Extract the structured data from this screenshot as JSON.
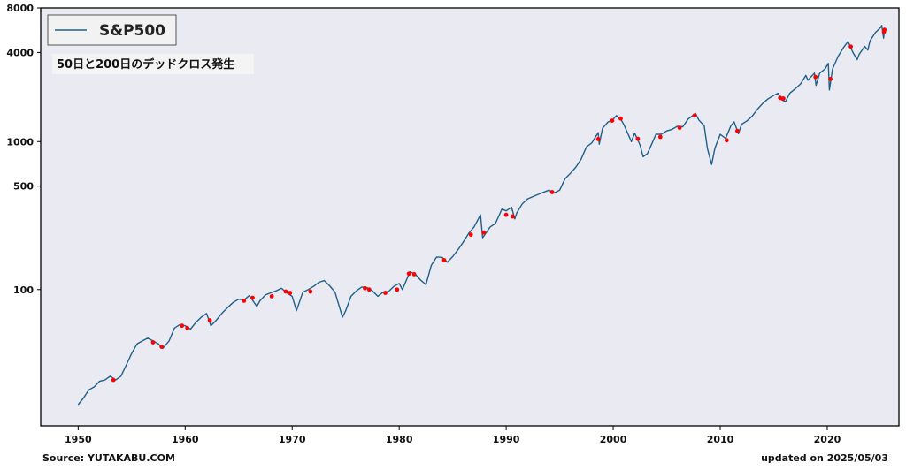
{
  "chart_data": {
    "type": "line",
    "yscale": "log",
    "xlim": [
      1946.5,
      2026.7
    ],
    "ylim": [
      12,
      8000
    ],
    "x_ticks": [
      1950,
      1960,
      1970,
      1980,
      1990,
      2000,
      2010,
      2020
    ],
    "y_ticks": [
      {
        "value": 100,
        "label": "100"
      },
      {
        "value": 500,
        "label": "500"
      },
      {
        "value": 1000,
        "label": "1000"
      },
      {
        "value": 4000,
        "label": "4000"
      },
      {
        "value": 8000,
        "label": "8000"
      }
    ],
    "background": "#eaeaf2",
    "series": [
      {
        "name": "S&P500",
        "color": "#1f5f8b",
        "points": [
          [
            1950.0,
            16.7
          ],
          [
            1950.5,
            18.5
          ],
          [
            1951.0,
            21.0
          ],
          [
            1951.5,
            22.0
          ],
          [
            1952.0,
            24.0
          ],
          [
            1952.5,
            24.5
          ],
          [
            1953.0,
            26.0
          ],
          [
            1953.5,
            24.5
          ],
          [
            1954.0,
            26.0
          ],
          [
            1954.5,
            31.0
          ],
          [
            1955.0,
            37.0
          ],
          [
            1955.5,
            43.0
          ],
          [
            1956.0,
            45.0
          ],
          [
            1956.5,
            47.0
          ],
          [
            1957.0,
            45.0
          ],
          [
            1957.5,
            43.0
          ],
          [
            1957.9,
            40.0
          ],
          [
            1958.5,
            45.0
          ],
          [
            1959.0,
            55.0
          ],
          [
            1959.5,
            58.0
          ],
          [
            1960.0,
            57.0
          ],
          [
            1960.5,
            54.0
          ],
          [
            1961.0,
            60.0
          ],
          [
            1961.5,
            65.0
          ],
          [
            1962.0,
            69.0
          ],
          [
            1962.4,
            57.0
          ],
          [
            1962.9,
            62.0
          ],
          [
            1963.5,
            70.0
          ],
          [
            1964.0,
            76.0
          ],
          [
            1964.5,
            82.0
          ],
          [
            1965.0,
            86.0
          ],
          [
            1965.5,
            85.0
          ],
          [
            1966.0,
            91.0
          ],
          [
            1966.7,
            77.0
          ],
          [
            1967.0,
            84.0
          ],
          [
            1967.5,
            92.0
          ],
          [
            1968.0,
            95.0
          ],
          [
            1968.5,
            98.0
          ],
          [
            1969.0,
            102.0
          ],
          [
            1969.5,
            95.0
          ],
          [
            1970.0,
            90.0
          ],
          [
            1970.4,
            72.0
          ],
          [
            1971.0,
            96.0
          ],
          [
            1971.5,
            100.0
          ],
          [
            1972.0,
            105.0
          ],
          [
            1972.5,
            112.0
          ],
          [
            1973.0,
            115.0
          ],
          [
            1973.5,
            106.0
          ],
          [
            1974.0,
            96.0
          ],
          [
            1974.7,
            65.0
          ],
          [
            1975.0,
            72.0
          ],
          [
            1975.5,
            90.0
          ],
          [
            1976.0,
            98.0
          ],
          [
            1976.5,
            104.0
          ],
          [
            1977.0,
            103.0
          ],
          [
            1977.5,
            98.0
          ],
          [
            1978.0,
            90.0
          ],
          [
            1978.5,
            96.0
          ],
          [
            1979.0,
            97.0
          ],
          [
            1979.5,
            105.0
          ],
          [
            1980.0,
            110.0
          ],
          [
            1980.3,
            100.0
          ],
          [
            1981.0,
            132.0
          ],
          [
            1981.5,
            127.0
          ],
          [
            1982.0,
            116.0
          ],
          [
            1982.5,
            108.0
          ],
          [
            1983.0,
            146.0
          ],
          [
            1983.5,
            166.0
          ],
          [
            1984.0,
            165.0
          ],
          [
            1984.5,
            153.0
          ],
          [
            1985.0,
            167.0
          ],
          [
            1985.5,
            186.0
          ],
          [
            1986.0,
            210.0
          ],
          [
            1986.5,
            240.0
          ],
          [
            1987.0,
            265.0
          ],
          [
            1987.6,
            320.0
          ],
          [
            1987.8,
            224.0
          ],
          [
            1988.5,
            265.0
          ],
          [
            1989.0,
            280.0
          ],
          [
            1989.6,
            350.0
          ],
          [
            1990.0,
            340.0
          ],
          [
            1990.5,
            360.0
          ],
          [
            1990.8,
            300.0
          ],
          [
            1991.0,
            330.0
          ],
          [
            1991.5,
            380.0
          ],
          [
            1992.0,
            410.0
          ],
          [
            1993.0,
            440.0
          ],
          [
            1994.0,
            470.0
          ],
          [
            1994.5,
            450.0
          ],
          [
            1995.0,
            470.0
          ],
          [
            1995.5,
            560.0
          ],
          [
            1996.0,
            610.0
          ],
          [
            1996.5,
            670.0
          ],
          [
            1997.0,
            760.0
          ],
          [
            1997.5,
            920.0
          ],
          [
            1998.0,
            980.0
          ],
          [
            1998.6,
            1150.0
          ],
          [
            1998.7,
            960.0
          ],
          [
            1999.0,
            1230.0
          ],
          [
            1999.5,
            1350.0
          ],
          [
            2000.0,
            1420.0
          ],
          [
            2000.3,
            1500.0
          ],
          [
            2000.8,
            1380.0
          ],
          [
            2001.0,
            1300.0
          ],
          [
            2001.7,
            1000.0
          ],
          [
            2002.0,
            1140.0
          ],
          [
            2002.5,
            950.0
          ],
          [
            2002.8,
            790.0
          ],
          [
            2003.2,
            830.0
          ],
          [
            2003.7,
            1000.0
          ],
          [
            2004.0,
            1120.0
          ],
          [
            2004.5,
            1120.0
          ],
          [
            2005.0,
            1180.0
          ],
          [
            2005.5,
            1210.0
          ],
          [
            2006.0,
            1270.0
          ],
          [
            2006.5,
            1260.0
          ],
          [
            2007.0,
            1420.0
          ],
          [
            2007.7,
            1550.0
          ],
          [
            2008.0,
            1400.0
          ],
          [
            2008.5,
            1280.0
          ],
          [
            2008.8,
            900.0
          ],
          [
            2009.2,
            700.0
          ],
          [
            2009.5,
            900.0
          ],
          [
            2010.0,
            1120.0
          ],
          [
            2010.5,
            1050.0
          ],
          [
            2011.0,
            1280.0
          ],
          [
            2011.3,
            1360.0
          ],
          [
            2011.7,
            1130.0
          ],
          [
            2012.0,
            1310.0
          ],
          [
            2012.5,
            1380.0
          ],
          [
            2013.0,
            1490.0
          ],
          [
            2013.5,
            1660.0
          ],
          [
            2014.0,
            1820.0
          ],
          [
            2014.5,
            1950.0
          ],
          [
            2015.0,
            2050.0
          ],
          [
            2015.4,
            2120.0
          ],
          [
            2015.7,
            1920.0
          ],
          [
            2016.1,
            1860.0
          ],
          [
            2016.5,
            2120.0
          ],
          [
            2017.0,
            2270.0
          ],
          [
            2017.5,
            2450.0
          ],
          [
            2018.0,
            2800.0
          ],
          [
            2018.2,
            2600.0
          ],
          [
            2018.8,
            2900.0
          ],
          [
            2018.95,
            2400.0
          ],
          [
            2019.3,
            2900.0
          ],
          [
            2019.8,
            3100.0
          ],
          [
            2020.1,
            3380.0
          ],
          [
            2020.2,
            2230.0
          ],
          [
            2020.5,
            3100.0
          ],
          [
            2021.0,
            3750.0
          ],
          [
            2021.5,
            4300.0
          ],
          [
            2021.95,
            4750.0
          ],
          [
            2022.4,
            4000.0
          ],
          [
            2022.8,
            3580.0
          ],
          [
            2023.0,
            3900.0
          ],
          [
            2023.5,
            4400.0
          ],
          [
            2023.8,
            4150.0
          ],
          [
            2024.0,
            4800.0
          ],
          [
            2024.5,
            5450.0
          ],
          [
            2025.0,
            5900.0
          ],
          [
            2025.1,
            6100.0
          ],
          [
            2025.27,
            5000.0
          ],
          [
            2025.34,
            5690.0
          ]
        ]
      },
      {
        "name": "",
        "color": "#ff0000",
        "points": [
          [
            1953.3,
            24.5
          ],
          [
            1957.0,
            44.0
          ],
          [
            1957.8,
            41.0
          ],
          [
            1959.7,
            57.0
          ],
          [
            1960.2,
            55.0
          ],
          [
            1962.3,
            62.0
          ],
          [
            1965.5,
            84.0
          ],
          [
            1966.3,
            88.0
          ],
          [
            1968.1,
            90.0
          ],
          [
            1969.4,
            97.0
          ],
          [
            1969.8,
            95.0
          ],
          [
            1971.7,
            97.0
          ],
          [
            1976.8,
            102.0
          ],
          [
            1977.2,
            100.0
          ],
          [
            1978.7,
            95.0
          ],
          [
            1979.8,
            100.0
          ],
          [
            1980.9,
            128.0
          ],
          [
            1981.4,
            127.0
          ],
          [
            1984.2,
            158.0
          ],
          [
            1986.7,
            235.0
          ],
          [
            1987.9,
            243.0
          ],
          [
            1990.0,
            320.0
          ],
          [
            1990.6,
            312.0
          ],
          [
            1994.3,
            455.0
          ],
          [
            1998.6,
            1040.0
          ],
          [
            1999.9,
            1385.0
          ],
          [
            2000.7,
            1430.0
          ],
          [
            2002.3,
            1045.0
          ],
          [
            2004.4,
            1075.0
          ],
          [
            2006.2,
            1240.0
          ],
          [
            2007.6,
            1500.0
          ],
          [
            2010.6,
            1020.0
          ],
          [
            2011.6,
            1180.0
          ],
          [
            2015.6,
            1975.0
          ],
          [
            2015.9,
            1955.0
          ],
          [
            2018.9,
            2730.0
          ],
          [
            2020.3,
            2650.0
          ],
          [
            2022.2,
            4380.0
          ],
          [
            2025.3,
            5510.0
          ],
          [
            2025.35,
            5700.0
          ]
        ]
      }
    ],
    "annotations": [
      "50日と200日のデッドクロス発生"
    ]
  },
  "footer": {
    "source": "Source: YUTAKABU.COM",
    "updated": "updated on 2025/05/03"
  }
}
